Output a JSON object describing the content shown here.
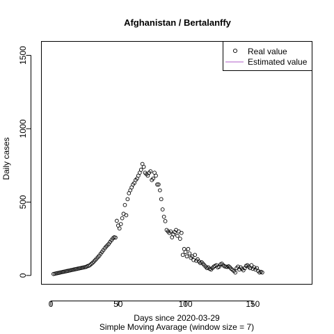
{
  "chart_data": {
    "type": "scatter",
    "title": "Afghanistan / Bertalanffy",
    "xlabel": "Days since 2020-03-29",
    "xlabel2": "Simple Moving Avarage (window size = 7)",
    "ylabel": "Daily cases",
    "xlim": [
      -7,
      194
    ],
    "ylim": [
      -60,
      1595
    ],
    "x_ticks": [
      0,
      50,
      100,
      150
    ],
    "y_ticks": [
      0,
      500,
      1000,
      1500
    ],
    "legend_position": "top-right",
    "colors": {
      "real": "#000000",
      "estimated": "#b05cc8",
      "axes": "#000000"
    },
    "series": [
      {
        "name": "Real value",
        "marker": "open-circle",
        "x": [
          2,
          3,
          4,
          5,
          6,
          7,
          8,
          9,
          10,
          11,
          12,
          13,
          14,
          15,
          16,
          17,
          18,
          19,
          20,
          21,
          22,
          23,
          24,
          25,
          26,
          27,
          28,
          29,
          30,
          31,
          32,
          33,
          34,
          35,
          36,
          37,
          38,
          39,
          40,
          41,
          42,
          43,
          44,
          45,
          46,
          47,
          48,
          49,
          50,
          51,
          52,
          53,
          54,
          55,
          56,
          57,
          58,
          59,
          60,
          61,
          62,
          63,
          64,
          65,
          66,
          67,
          68,
          69,
          70,
          71,
          72,
          73,
          74,
          75,
          76,
          77,
          78,
          79,
          80,
          81,
          82,
          83,
          84,
          85,
          86,
          87,
          88,
          89,
          90,
          91,
          92,
          93,
          94,
          95,
          96,
          97,
          98,
          99,
          100,
          101,
          102,
          103,
          104,
          105,
          106,
          107,
          108,
          109,
          110,
          111,
          112,
          113,
          114,
          115,
          116,
          117,
          118,
          119,
          120,
          121,
          122,
          123,
          124,
          125,
          126,
          127,
          128,
          129,
          130,
          131,
          132,
          133,
          134,
          135,
          136,
          137,
          138,
          139,
          140,
          141,
          142,
          143,
          144,
          145,
          146,
          147,
          148,
          149,
          150,
          151,
          152,
          153,
          154,
          155,
          156,
          157
        ],
        "y": [
          10,
          12,
          14,
          16,
          18,
          20,
          22,
          24,
          26,
          28,
          30,
          32,
          34,
          36,
          38,
          40,
          42,
          44,
          46,
          48,
          50,
          52,
          54,
          56,
          58,
          62,
          66,
          70,
          78,
          86,
          95,
          105,
          115,
          125,
          135,
          148,
          160,
          172,
          185,
          196,
          205,
          215,
          228,
          240,
          252,
          260,
          258,
          372,
          340,
          320,
          350,
          390,
          420,
          480,
          410,
          520,
          560,
          580,
          600,
          620,
          630,
          650,
          660,
          680,
          700,
          720,
          760,
          740,
          700,
          690,
          680,
          700,
          710,
          650,
          660,
          700,
          680,
          620,
          620,
          580,
          520,
          450,
          400,
          370,
          310,
          300,
          290,
          300,
          260,
          280,
          295,
          310,
          270,
          300,
          250,
          290,
          140,
          180,
          160,
          130,
          180,
          150,
          120,
          130,
          105,
          140,
          100,
          110,
          95,
          85,
          90,
          80,
          70,
          60,
          50,
          55,
          45,
          40,
          50,
          60,
          65,
          70,
          55,
          60,
          75,
          80,
          70,
          62,
          60,
          58,
          62,
          55,
          45,
          38,
          30,
          20,
          50,
          60,
          40,
          55,
          45,
          35,
          50,
          65,
          70,
          60,
          50,
          70,
          45,
          55,
          40,
          50,
          30,
          20,
          25,
          20
        ]
      },
      {
        "name": "Estimated value",
        "marker": "line",
        "x": [],
        "y": []
      }
    ]
  }
}
